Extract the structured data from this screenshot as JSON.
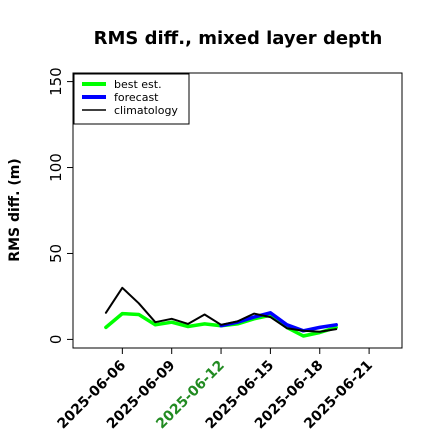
{
  "chart_data": {
    "type": "line",
    "title": "RMS diff., mixed layer depth",
    "ylabel": "RMS diff. (m)",
    "xlabel": "",
    "xlim": [
      "2025-06-03",
      "2025-06-23"
    ],
    "ylim": [
      -5,
      155
    ],
    "yticks": [
      0,
      50,
      100,
      150
    ],
    "xticks": [
      "2025-06-06",
      "2025-06-09",
      "2025-06-12",
      "2025-06-15",
      "2025-06-18",
      "2025-06-21"
    ],
    "highlighted_xtick": "2025-06-12",
    "highlight_color": "#228B22",
    "legend_position": "top-left",
    "series": [
      {
        "name": "best est.",
        "color": "#00ff00",
        "x": [
          "2025-06-05",
          "2025-06-06",
          "2025-06-07",
          "2025-06-08",
          "2025-06-09",
          "2025-06-10",
          "2025-06-11",
          "2025-06-12",
          "2025-06-13",
          "2025-06-14",
          "2025-06-15",
          "2025-06-16",
          "2025-06-17",
          "2025-06-18",
          "2025-06-19"
        ],
        "values": [
          7,
          15,
          14.5,
          8.5,
          10,
          7.5,
          9,
          8,
          9,
          12,
          14,
          7,
          2,
          4,
          7
        ]
      },
      {
        "name": "forecast",
        "color": "#0000ff",
        "x": [
          "2025-06-12",
          "2025-06-13",
          "2025-06-14",
          "2025-06-15",
          "2025-06-16",
          "2025-06-17",
          "2025-06-18",
          "2025-06-19"
        ],
        "values": [
          8,
          10,
          13,
          15.5,
          8.5,
          5,
          7,
          8.5
        ]
      },
      {
        "name": "climatology",
        "color": "#000000",
        "x": [
          "2025-06-05",
          "2025-06-06",
          "2025-06-07",
          "2025-06-08",
          "2025-06-09",
          "2025-06-10",
          "2025-06-11",
          "2025-06-12",
          "2025-06-13",
          "2025-06-14",
          "2025-06-15",
          "2025-06-16",
          "2025-06-17",
          "2025-06-18",
          "2025-06-19"
        ],
        "values": [
          15.5,
          30,
          21,
          10,
          12,
          9,
          14.5,
          8.5,
          10.5,
          15,
          13,
          6.5,
          5,
          4.5,
          6
        ]
      }
    ]
  }
}
